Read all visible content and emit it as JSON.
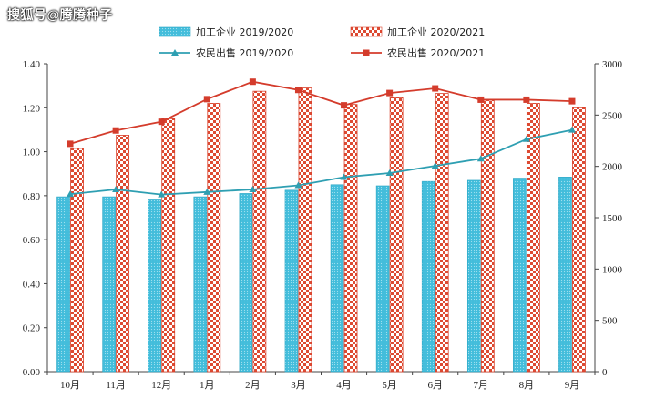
{
  "watermark": "搜狐号@腾腾种子",
  "colors": {
    "bar1_fill": "#3bb8d6",
    "bar2_stroke": "#d9412b",
    "line1": "#2e9fb2",
    "line2": "#d43c2c",
    "axis": "#444444"
  },
  "chart_data": {
    "type": "bar",
    "categories": [
      "10月",
      "11月",
      "12月",
      "1月",
      "2月",
      "3月",
      "4月",
      "5月",
      "6月",
      "7月",
      "8月",
      "9月"
    ],
    "left_axis": {
      "ticks": [
        "0.00",
        "0.20",
        "0.40",
        "0.60",
        "0.80",
        "1.00",
        "1.20",
        "1.40"
      ],
      "ylim": [
        0,
        1.4
      ]
    },
    "right_axis": {
      "ticks": [
        "0",
        "500",
        "1000",
        "1500",
        "2000",
        "2500",
        "3000"
      ],
      "ylim": [
        0,
        3000
      ]
    },
    "series": [
      {
        "name": "加工企业 2019/2020",
        "kind": "bar",
        "axis": "left",
        "values": [
          0.795,
          0.795,
          0.785,
          0.795,
          0.81,
          0.825,
          0.85,
          0.845,
          0.865,
          0.87,
          0.88,
          0.885
        ]
      },
      {
        "name": "加工企业 2020/2021",
        "kind": "bar",
        "axis": "left",
        "values": [
          1.015,
          1.075,
          1.15,
          1.22,
          1.275,
          1.29,
          1.215,
          1.245,
          1.265,
          1.235,
          1.22,
          1.2
        ]
      },
      {
        "name": "农民出售 2019/2020",
        "kind": "line",
        "axis": "right",
        "marker": "triangle",
        "values": [
          1730,
          1775,
          1725,
          1750,
          1775,
          1815,
          1895,
          1935,
          2005,
          2075,
          2265,
          2355
        ]
      },
      {
        "name": "农民出售 2020/2021",
        "kind": "line",
        "axis": "right",
        "marker": "square",
        "values": [
          2220,
          2350,
          2435,
          2655,
          2825,
          2745,
          2595,
          2715,
          2760,
          2650,
          2650,
          2635
        ]
      }
    ],
    "legend": "top-center",
    "grid": false
  }
}
